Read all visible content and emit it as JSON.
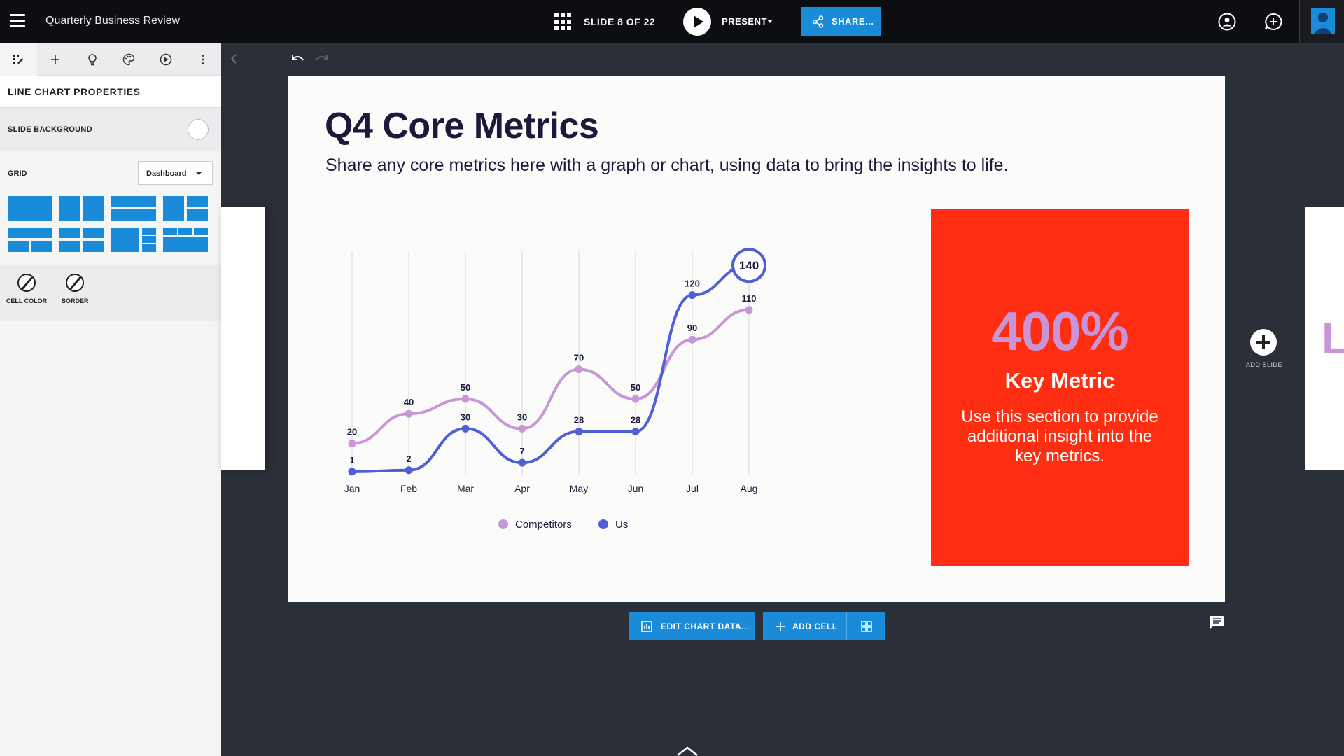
{
  "header": {
    "doc_title": "Quarterly Business Review",
    "slide_counter": "SLIDE 8 OF 22",
    "present_label": "PRESENT",
    "share_label": "SHARE..."
  },
  "panel": {
    "tabs": [
      "design",
      "add",
      "ideas",
      "theme",
      "playback",
      "more"
    ],
    "title": "LINE CHART PROPERTIES",
    "slide_background_label": "SLIDE BACKGROUND",
    "grid_label": "GRID",
    "grid_value": "Dashboard",
    "cell_color_label": "CELL COLOR",
    "border_label": "BORDER"
  },
  "canvas": {
    "add_slide_label": "ADD SLIDE",
    "next_slide_letter": "L"
  },
  "slide": {
    "title": "Q4 Core Metrics",
    "subtitle": "Share any core metrics here with a graph or chart, using data to bring the insights to life.",
    "key_value": "400%",
    "key_title": "Key Metric",
    "key_desc": "Use this section to provide additional insight into the key metrics."
  },
  "actions": {
    "edit_chart_label": "EDIT CHART DATA...",
    "add_cell_label": "ADD CELL"
  },
  "colors": {
    "accent": "#1a8bd8",
    "competitors": "#c995d8",
    "us": "#4f5fd6",
    "key_box": "#ff2d12",
    "title": "#1c1a3c"
  },
  "chart_data": {
    "type": "line",
    "categories": [
      "Jan",
      "Feb",
      "Mar",
      "Apr",
      "May",
      "Jun",
      "Jul",
      "Aug"
    ],
    "series": [
      {
        "name": "Competitors",
        "values": [
          20,
          40,
          50,
          30,
          70,
          50,
          90,
          110
        ]
      },
      {
        "name": "Us",
        "values": [
          1,
          2,
          30,
          7,
          28,
          28,
          120,
          140
        ]
      }
    ],
    "highlight": {
      "series": "Us",
      "category": "Aug",
      "value": 140
    },
    "ylim": [
      0,
      150
    ],
    "grid": "vertical",
    "legend": "bottom-center"
  }
}
